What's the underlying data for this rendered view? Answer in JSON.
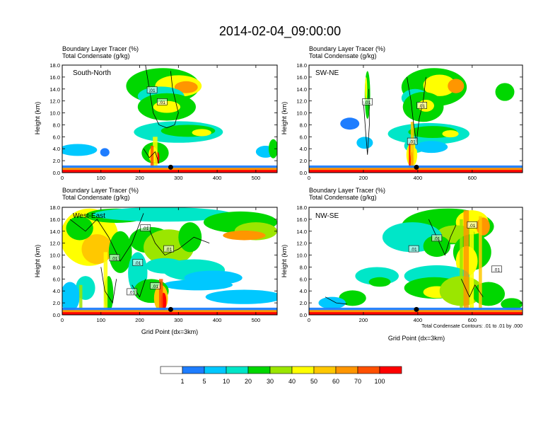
{
  "figure": {
    "title": "2014-02-04_09:00:00",
    "footnote": "Total Condensate Contours: .01 to .01 by .000"
  },
  "colorbar": {
    "colors": [
      "#ffffff",
      "#1e7dff",
      "#00c8ff",
      "#00e6c8",
      "#00d700",
      "#9be600",
      "#ffff00",
      "#ffc800",
      "#ff9600",
      "#ff5000",
      "#ff0000"
    ],
    "labels": [
      "1",
      "5",
      "10",
      "20",
      "30",
      "40",
      "50",
      "60",
      "70",
      "100"
    ]
  },
  "chart_data": [
    {
      "type": "heatmap",
      "id": "south-north",
      "label": "South-North",
      "title_line1": "Boundary Layer Tracer    (%)",
      "title_line2": "Total Condensate    (g/kg)",
      "ylabel": "Height (km)",
      "xlabel": "",
      "ylim": [
        0,
        18
      ],
      "yticks": [
        "0.0",
        "2.0",
        "4.0",
        "6.0",
        "8.0",
        "10.0",
        "12.0",
        "14.0",
        "16.0",
        "18.0"
      ],
      "xlim": [
        0,
        555
      ],
      "xticks": [
        0,
        100,
        200,
        300,
        400,
        500
      ],
      "xtick_labels": [
        "0",
        "100",
        "200",
        "300",
        "400",
        "500"
      ],
      "marker_x": 280,
      "contour_labels": [
        ".01",
        ".01"
      ]
    },
    {
      "type": "heatmap",
      "id": "sw-ne",
      "label": "SW-NE",
      "title_line1": "Boundary Layer Tracer    (%)",
      "title_line2": "Total Condensate    (g/kg)",
      "ylabel": "Height (km)",
      "xlabel": "",
      "ylim": [
        0,
        18
      ],
      "yticks": [
        "0.0",
        "2.0",
        "4.0",
        "6.0",
        "8.0",
        "10.0",
        "12.0",
        "14.0",
        "16.0",
        "18.0"
      ],
      "xlim": [
        0,
        785
      ],
      "xticks": [
        0,
        200,
        400,
        600
      ],
      "xtick_labels": [
        "0",
        "200",
        "400",
        "600"
      ],
      "marker_x": 395,
      "contour_labels": [
        ".01",
        ".01",
        ".01"
      ]
    },
    {
      "type": "heatmap",
      "id": "west-east",
      "label": "West-East",
      "title_line1": "Boundary Layer Tracer    (%)",
      "title_line2": "Total Condensate    (g/kg)",
      "ylabel": "Height (km)",
      "xlabel": "Grid Point (dx=3km)",
      "ylim": [
        0,
        18
      ],
      "yticks": [
        "0.0",
        "2.0",
        "4.0",
        "6.0",
        "8.0",
        "10.0",
        "12.0",
        "14.0",
        "16.0",
        "18.0"
      ],
      "xlim": [
        0,
        555
      ],
      "xticks": [
        0,
        100,
        200,
        300,
        400,
        500
      ],
      "xtick_labels": [
        "0",
        "100",
        "200",
        "300",
        "400",
        "500"
      ],
      "marker_x": 280,
      "contour_labels": [
        ".01",
        ".01",
        ".01",
        ".01",
        ".01",
        ".01"
      ]
    },
    {
      "type": "heatmap",
      "id": "nw-se",
      "label": "NW-SE",
      "title_line1": "Boundary Layer Tracer    (%)",
      "title_line2": "Total Condensate    (g/kg)",
      "ylabel": "Height (km)",
      "xlabel": "Grid Point (dx=3km)",
      "ylim": [
        0,
        18
      ],
      "yticks": [
        "0.0",
        "2.0",
        "4.0",
        "6.0",
        "8.0",
        "10.0",
        "12.0",
        "14.0",
        "16.0",
        "18.0"
      ],
      "xlim": [
        0,
        785
      ],
      "xticks": [
        0,
        200,
        400,
        600
      ],
      "xtick_labels": [
        "0",
        "200",
        "400",
        "600"
      ],
      "marker_x": 395,
      "contour_labels": [
        ".01",
        ".01",
        ".01",
        ".01"
      ]
    }
  ]
}
